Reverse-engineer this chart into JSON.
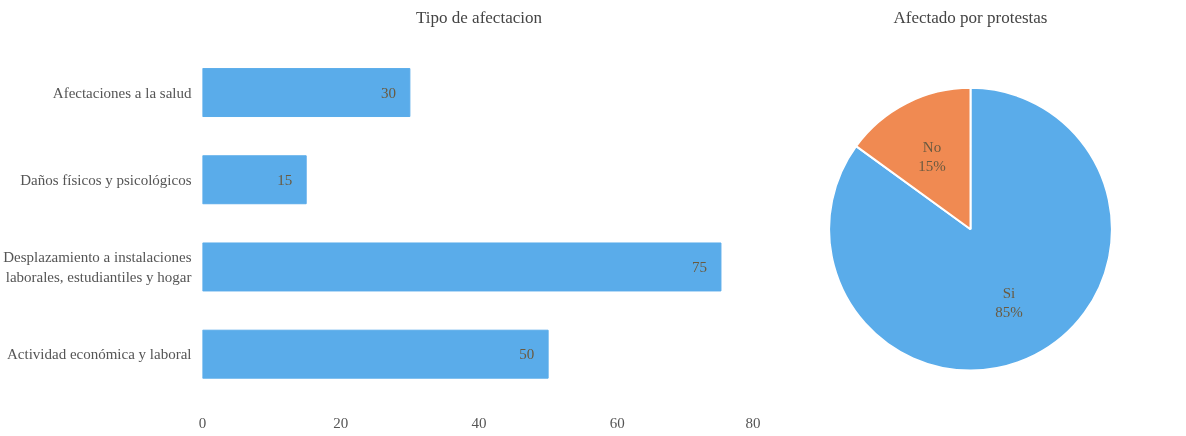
{
  "chart_data": [
    {
      "type": "bar",
      "orientation": "horizontal",
      "title": "Tipo de afectacion",
      "categories": [
        "Afectaciones a la salud",
        "Daños físicos y psicológicos",
        "Desplazamiento a instalaciones\nlaborales, estudiantiles y hogar",
        "Actividad económica y laboral"
      ],
      "values": [
        30,
        15,
        75,
        50
      ],
      "color": "#5aacea",
      "xlim": [
        0,
        80
      ],
      "xticks": [
        0,
        20,
        40,
        60,
        80
      ],
      "grid": false,
      "data_labels": true
    },
    {
      "type": "pie",
      "title": "Afectado por protestas",
      "categories": [
        "Si",
        "No"
      ],
      "values": [
        85,
        15
      ],
      "colors": [
        "#5aacea",
        "#f08a52"
      ],
      "value_labels": [
        "85%",
        "15%"
      ]
    }
  ]
}
